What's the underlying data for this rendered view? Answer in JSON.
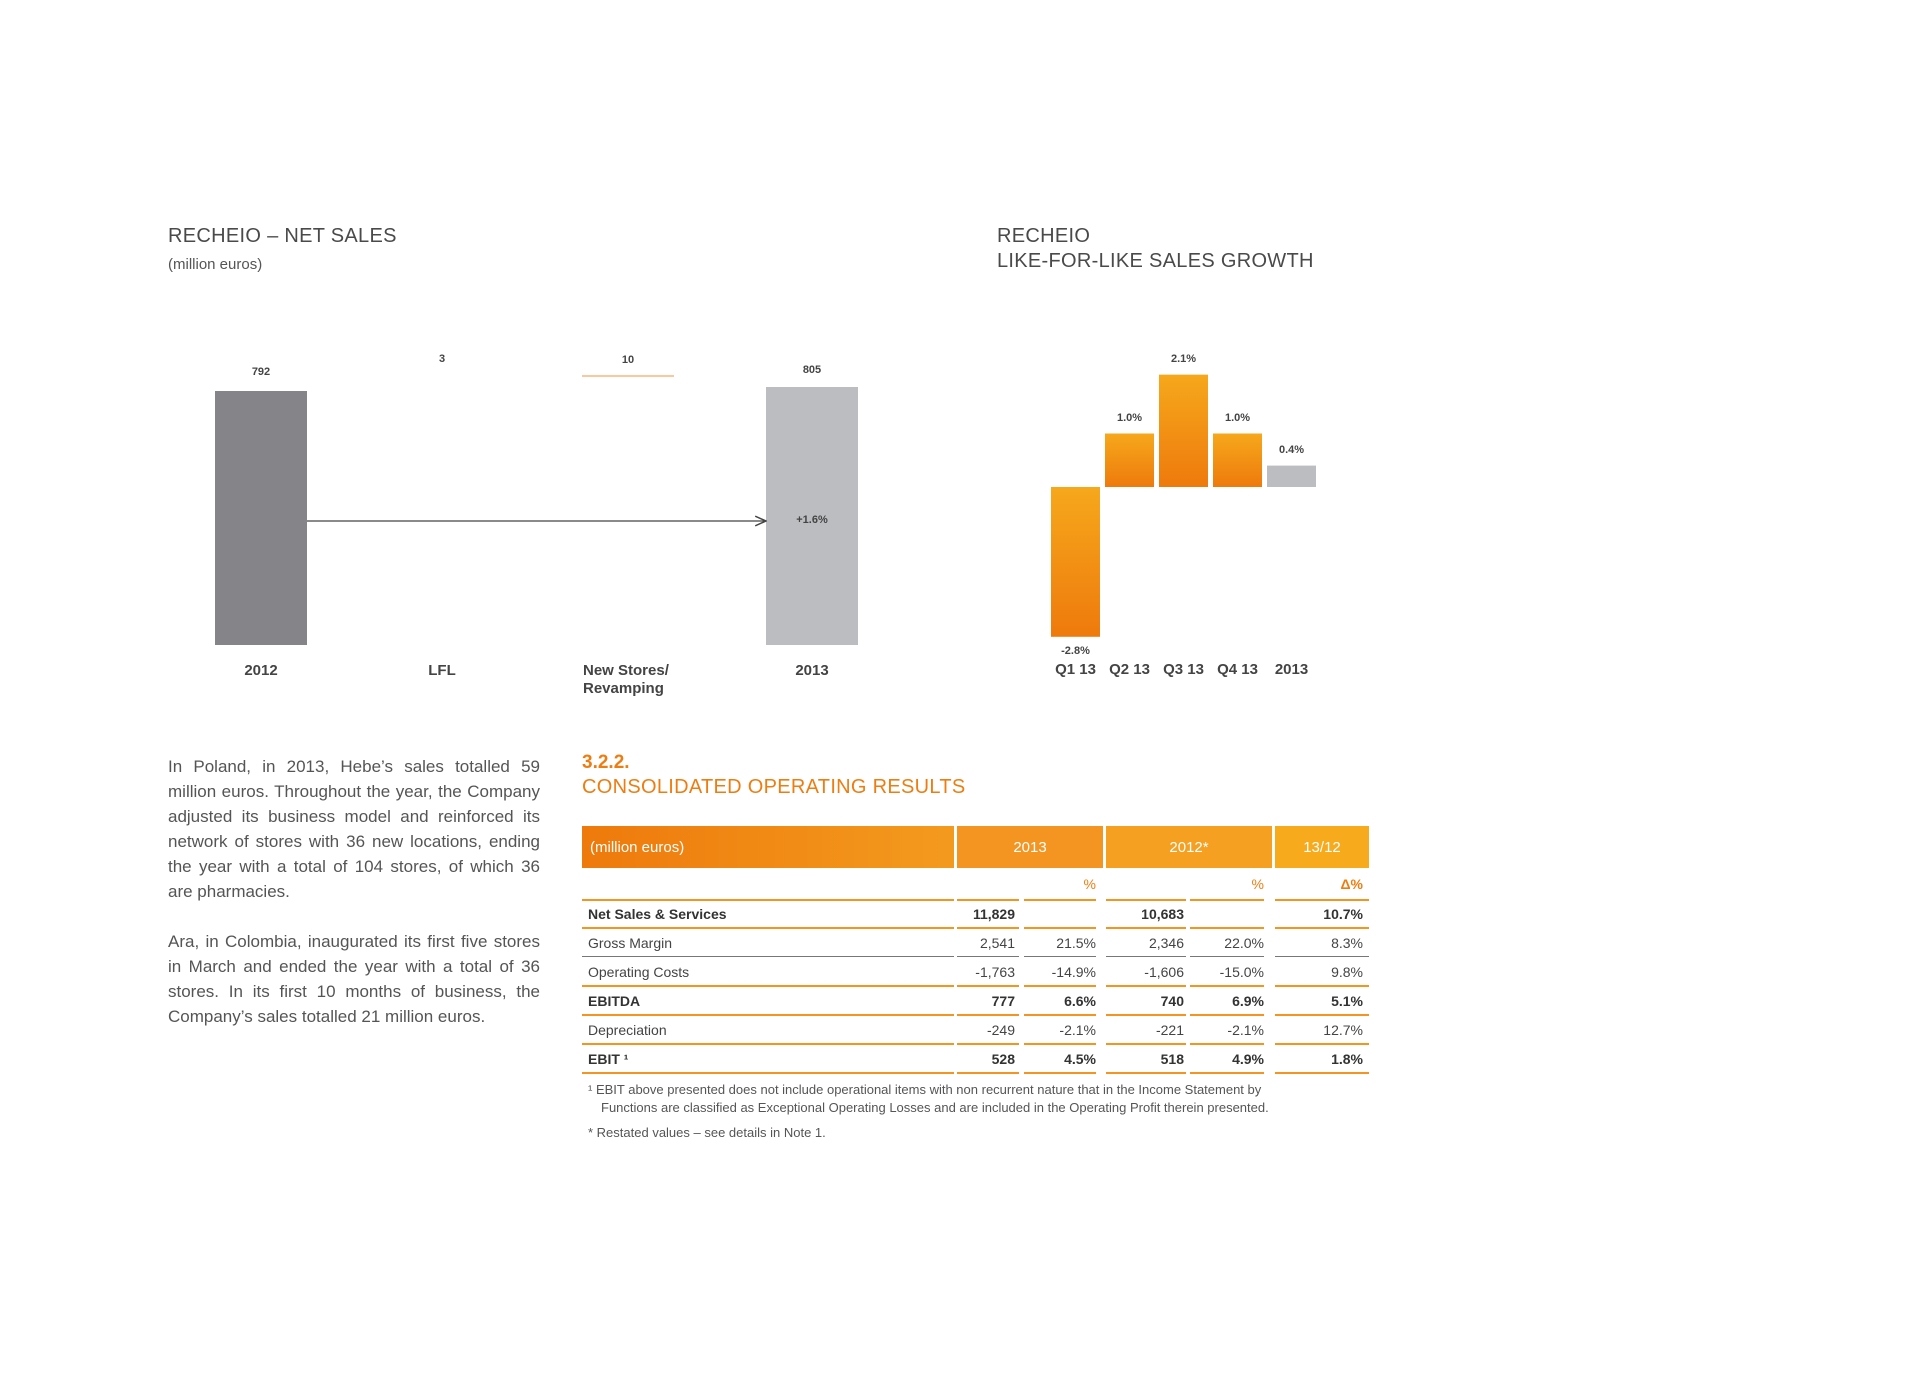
{
  "net_sales_chart": {
    "title": "RECHEIO – NET SALES",
    "subtitle": "(million euros)",
    "chart_data": {
      "type": "bar",
      "categories": [
        "2012",
        "LFL",
        "New Stores/ Revamping",
        "2013"
      ],
      "values": [
        792,
        3,
        10,
        805
      ],
      "value_labels": [
        "792",
        "3",
        "10",
        "805"
      ],
      "annotation": "+1.6%",
      "title": "RECHEIO – NET SALES",
      "ylabel": "(million euros)"
    },
    "cat_labels": [
      "2012",
      "LFL",
      "New Stores/",
      "Revamping",
      "2013"
    ]
  },
  "lfl_chart": {
    "title_line1": "RECHEIO",
    "title_line2": "LIKE-FOR-LIKE SALES GROWTH",
    "chart_data": {
      "type": "bar",
      "categories": [
        "Q1 13",
        "Q2 13",
        "Q3 13",
        "Q4 13",
        "2013"
      ],
      "values": [
        -2.8,
        1.0,
        2.1,
        1.0,
        0.4
      ],
      "value_labels": [
        "-2.8%",
        "1.0%",
        "2.1%",
        "1.0%",
        "0.4%"
      ],
      "title": "RECHEIO LIKE-FOR-LIKE SALES GROWTH"
    }
  },
  "paragraphs": [
    "In Poland, in 2013, Hebe’s sales totalled 59 million euros. Throughout the year, the Company adjusted its business model and reinforced its network of stores with 36 new locations, ending the year with a total of 104 stores, of which 36 are pharmacies.",
    "Ara, in Colombia, inaugurated its first five stores in March and ended the year with a total of 36 stores. In its first 10 months of business, the Company’s sales totalled 21 million euros."
  ],
  "section": {
    "number": "3.2.2.",
    "title": "CONSOLIDATED OPERATING RESULTS"
  },
  "table": {
    "header": {
      "label": "(million euros)",
      "y2013": "2013",
      "y2012": "2012*",
      "delta": "13/12"
    },
    "subheader": {
      "pct1": "%",
      "pct2": "%",
      "delta": "Δ%"
    },
    "rows": [
      {
        "label": "Net Sales & Services",
        "v2013": "11,829",
        "p2013": "",
        "v2012": "10,683",
        "p2012": "",
        "delta": "10.7%"
      },
      {
        "label": "Gross Margin",
        "v2013": "2,541",
        "p2013": "21.5%",
        "v2012": "2,346",
        "p2012": "22.0%",
        "delta": "8.3%"
      },
      {
        "label": "Operating Costs",
        "v2013": "-1,763",
        "p2013": "-14.9%",
        "v2012": "-1,606",
        "p2012": "-15.0%",
        "delta": "9.8%"
      },
      {
        "label": "EBITDA",
        "v2013": "777",
        "p2013": "6.6%",
        "v2012": "740",
        "p2012": "6.9%",
        "delta": "5.1%"
      },
      {
        "label": "Depreciation",
        "v2013": "-249",
        "p2013": "-2.1%",
        "v2012": "-221",
        "p2012": "-2.1%",
        "delta": "12.7%"
      },
      {
        "label": "EBIT ¹",
        "v2013": "528",
        "p2013": "4.5%",
        "v2012": "518",
        "p2012": "4.9%",
        "delta": "1.8%"
      }
    ],
    "footnote1_line1": "¹ EBIT above presented does not include operational items with non recurrent nature that in the Income Statement by",
    "footnote1_line2": "Functions are classified as Exceptional Operating Losses and are included in the Operating Profit therein presented.",
    "footnote2": "* Restated values – see details in Note 1."
  },
  "colors": {
    "orange": "#f39520",
    "dark_orange": "#ee7d11",
    "dark_gray": "#858589",
    "light_gray": "#bcbdc1"
  }
}
